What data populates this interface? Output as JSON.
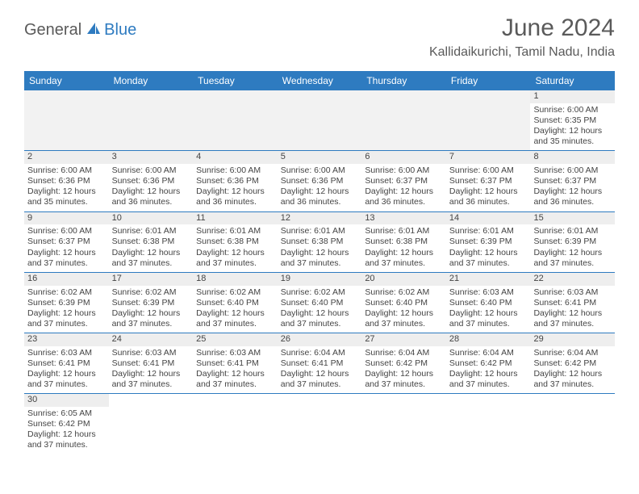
{
  "logo": {
    "part1": "General",
    "part2": "Blue"
  },
  "title": "June 2024",
  "location": "Kallidaikurichi, Tamil Nadu, India",
  "colors": {
    "header_bg": "#2e7bc0",
    "header_text": "#ffffff",
    "daynum_bg": "#eeeeee",
    "empty_bg": "#f2f2f2",
    "border": "#2e7bc0",
    "text": "#444444",
    "title_text": "#5a5a5a"
  },
  "day_names": [
    "Sunday",
    "Monday",
    "Tuesday",
    "Wednesday",
    "Thursday",
    "Friday",
    "Saturday"
  ],
  "weeks": [
    [
      {
        "empty": true
      },
      {
        "empty": true
      },
      {
        "empty": true
      },
      {
        "empty": true
      },
      {
        "empty": true
      },
      {
        "empty": true
      },
      {
        "num": "1",
        "sunrise": "Sunrise: 6:00 AM",
        "sunset": "Sunset: 6:35 PM",
        "daylight1": "Daylight: 12 hours",
        "daylight2": "and 35 minutes."
      }
    ],
    [
      {
        "num": "2",
        "sunrise": "Sunrise: 6:00 AM",
        "sunset": "Sunset: 6:36 PM",
        "daylight1": "Daylight: 12 hours",
        "daylight2": "and 35 minutes."
      },
      {
        "num": "3",
        "sunrise": "Sunrise: 6:00 AM",
        "sunset": "Sunset: 6:36 PM",
        "daylight1": "Daylight: 12 hours",
        "daylight2": "and 36 minutes."
      },
      {
        "num": "4",
        "sunrise": "Sunrise: 6:00 AM",
        "sunset": "Sunset: 6:36 PM",
        "daylight1": "Daylight: 12 hours",
        "daylight2": "and 36 minutes."
      },
      {
        "num": "5",
        "sunrise": "Sunrise: 6:00 AM",
        "sunset": "Sunset: 6:36 PM",
        "daylight1": "Daylight: 12 hours",
        "daylight2": "and 36 minutes."
      },
      {
        "num": "6",
        "sunrise": "Sunrise: 6:00 AM",
        "sunset": "Sunset: 6:37 PM",
        "daylight1": "Daylight: 12 hours",
        "daylight2": "and 36 minutes."
      },
      {
        "num": "7",
        "sunrise": "Sunrise: 6:00 AM",
        "sunset": "Sunset: 6:37 PM",
        "daylight1": "Daylight: 12 hours",
        "daylight2": "and 36 minutes."
      },
      {
        "num": "8",
        "sunrise": "Sunrise: 6:00 AM",
        "sunset": "Sunset: 6:37 PM",
        "daylight1": "Daylight: 12 hours",
        "daylight2": "and 36 minutes."
      }
    ],
    [
      {
        "num": "9",
        "sunrise": "Sunrise: 6:00 AM",
        "sunset": "Sunset: 6:37 PM",
        "daylight1": "Daylight: 12 hours",
        "daylight2": "and 37 minutes."
      },
      {
        "num": "10",
        "sunrise": "Sunrise: 6:01 AM",
        "sunset": "Sunset: 6:38 PM",
        "daylight1": "Daylight: 12 hours",
        "daylight2": "and 37 minutes."
      },
      {
        "num": "11",
        "sunrise": "Sunrise: 6:01 AM",
        "sunset": "Sunset: 6:38 PM",
        "daylight1": "Daylight: 12 hours",
        "daylight2": "and 37 minutes."
      },
      {
        "num": "12",
        "sunrise": "Sunrise: 6:01 AM",
        "sunset": "Sunset: 6:38 PM",
        "daylight1": "Daylight: 12 hours",
        "daylight2": "and 37 minutes."
      },
      {
        "num": "13",
        "sunrise": "Sunrise: 6:01 AM",
        "sunset": "Sunset: 6:38 PM",
        "daylight1": "Daylight: 12 hours",
        "daylight2": "and 37 minutes."
      },
      {
        "num": "14",
        "sunrise": "Sunrise: 6:01 AM",
        "sunset": "Sunset: 6:39 PM",
        "daylight1": "Daylight: 12 hours",
        "daylight2": "and 37 minutes."
      },
      {
        "num": "15",
        "sunrise": "Sunrise: 6:01 AM",
        "sunset": "Sunset: 6:39 PM",
        "daylight1": "Daylight: 12 hours",
        "daylight2": "and 37 minutes."
      }
    ],
    [
      {
        "num": "16",
        "sunrise": "Sunrise: 6:02 AM",
        "sunset": "Sunset: 6:39 PM",
        "daylight1": "Daylight: 12 hours",
        "daylight2": "and 37 minutes."
      },
      {
        "num": "17",
        "sunrise": "Sunrise: 6:02 AM",
        "sunset": "Sunset: 6:39 PM",
        "daylight1": "Daylight: 12 hours",
        "daylight2": "and 37 minutes."
      },
      {
        "num": "18",
        "sunrise": "Sunrise: 6:02 AM",
        "sunset": "Sunset: 6:40 PM",
        "daylight1": "Daylight: 12 hours",
        "daylight2": "and 37 minutes."
      },
      {
        "num": "19",
        "sunrise": "Sunrise: 6:02 AM",
        "sunset": "Sunset: 6:40 PM",
        "daylight1": "Daylight: 12 hours",
        "daylight2": "and 37 minutes."
      },
      {
        "num": "20",
        "sunrise": "Sunrise: 6:02 AM",
        "sunset": "Sunset: 6:40 PM",
        "daylight1": "Daylight: 12 hours",
        "daylight2": "and 37 minutes."
      },
      {
        "num": "21",
        "sunrise": "Sunrise: 6:03 AM",
        "sunset": "Sunset: 6:40 PM",
        "daylight1": "Daylight: 12 hours",
        "daylight2": "and 37 minutes."
      },
      {
        "num": "22",
        "sunrise": "Sunrise: 6:03 AM",
        "sunset": "Sunset: 6:41 PM",
        "daylight1": "Daylight: 12 hours",
        "daylight2": "and 37 minutes."
      }
    ],
    [
      {
        "num": "23",
        "sunrise": "Sunrise: 6:03 AM",
        "sunset": "Sunset: 6:41 PM",
        "daylight1": "Daylight: 12 hours",
        "daylight2": "and 37 minutes."
      },
      {
        "num": "24",
        "sunrise": "Sunrise: 6:03 AM",
        "sunset": "Sunset: 6:41 PM",
        "daylight1": "Daylight: 12 hours",
        "daylight2": "and 37 minutes."
      },
      {
        "num": "25",
        "sunrise": "Sunrise: 6:03 AM",
        "sunset": "Sunset: 6:41 PM",
        "daylight1": "Daylight: 12 hours",
        "daylight2": "and 37 minutes."
      },
      {
        "num": "26",
        "sunrise": "Sunrise: 6:04 AM",
        "sunset": "Sunset: 6:41 PM",
        "daylight1": "Daylight: 12 hours",
        "daylight2": "and 37 minutes."
      },
      {
        "num": "27",
        "sunrise": "Sunrise: 6:04 AM",
        "sunset": "Sunset: 6:42 PM",
        "daylight1": "Daylight: 12 hours",
        "daylight2": "and 37 minutes."
      },
      {
        "num": "28",
        "sunrise": "Sunrise: 6:04 AM",
        "sunset": "Sunset: 6:42 PM",
        "daylight1": "Daylight: 12 hours",
        "daylight2": "and 37 minutes."
      },
      {
        "num": "29",
        "sunrise": "Sunrise: 6:04 AM",
        "sunset": "Sunset: 6:42 PM",
        "daylight1": "Daylight: 12 hours",
        "daylight2": "and 37 minutes."
      }
    ],
    [
      {
        "num": "30",
        "sunrise": "Sunrise: 6:05 AM",
        "sunset": "Sunset: 6:42 PM",
        "daylight1": "Daylight: 12 hours",
        "daylight2": "and 37 minutes."
      },
      {
        "empty": true
      },
      {
        "empty": true
      },
      {
        "empty": true
      },
      {
        "empty": true
      },
      {
        "empty": true
      },
      {
        "empty": true
      }
    ]
  ]
}
